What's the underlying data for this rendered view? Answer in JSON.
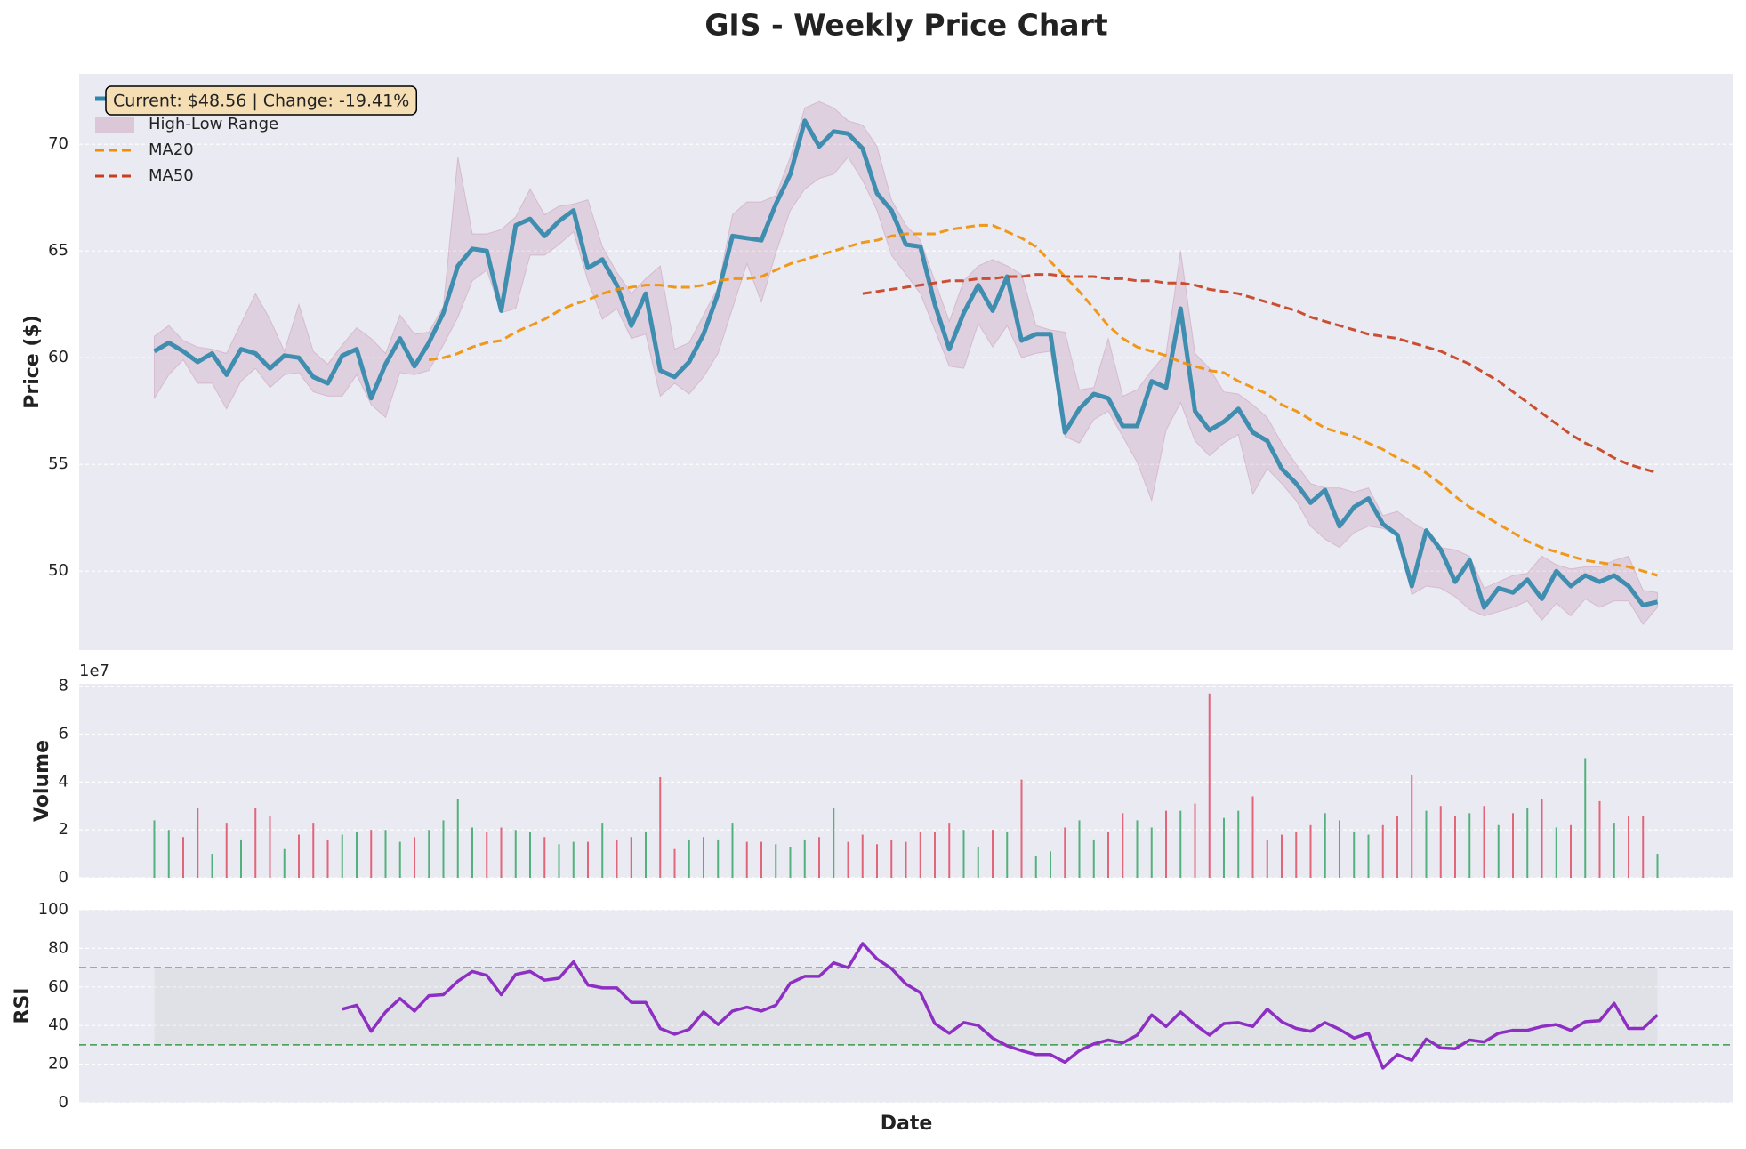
{
  "chart_data": [
    {
      "type": "line",
      "title": "GIS - Weekly Price Chart",
      "ylabel": "Price ($)",
      "annotation": "Current: $48.56 | Change: -19.41%",
      "legend": "upper left",
      "grid": true,
      "ylim": [
        46.3,
        73.3
      ],
      "yticks": [
        50,
        55,
        60,
        65,
        70
      ],
      "series": [
        {
          "name": "Close Price",
          "color": "#2e86ab",
          "values": [
            60.3,
            60.7,
            60.3,
            59.8,
            60.2,
            59.2,
            60.4,
            60.2,
            59.5,
            60.1,
            60.0,
            59.1,
            58.8,
            60.1,
            60.4,
            58.1,
            59.7,
            60.9,
            59.6,
            60.7,
            62.1,
            64.3,
            65.1,
            65.0,
            62.2,
            66.2,
            66.5,
            65.7,
            66.4,
            66.9,
            64.2,
            64.6,
            63.4,
            61.5,
            63.0,
            59.4,
            59.1,
            59.8,
            61.1,
            63.0,
            65.7,
            65.6,
            65.5,
            67.2,
            68.6,
            71.1,
            69.9,
            70.6,
            70.5,
            69.8,
            67.7,
            66.9,
            65.3,
            65.2,
            62.5,
            60.4,
            62.1,
            63.4,
            62.2,
            63.8,
            60.8,
            61.1,
            61.1,
            56.5,
            57.6,
            58.3,
            58.1,
            56.8,
            56.8,
            58.9,
            58.6,
            62.3,
            57.5,
            56.6,
            57.0,
            57.6,
            56.5,
            56.1,
            54.8,
            54.1,
            53.2,
            53.8,
            52.1,
            53.0,
            53.4,
            52.2,
            51.7,
            49.3,
            51.9,
            51.0,
            49.5,
            50.5,
            48.3,
            49.2,
            49.0,
            49.6,
            48.7,
            50.0,
            49.3,
            49.8,
            49.5,
            49.8,
            49.3,
            48.4,
            48.56
          ]
        },
        {
          "name": "High-Low Range",
          "color": "#a23b72",
          "style": "range",
          "high": [
            61.0,
            61.5,
            60.8,
            60.5,
            60.4,
            60.2,
            61.6,
            63.0,
            61.8,
            60.3,
            62.5,
            60.3,
            59.7,
            60.6,
            61.4,
            60.9,
            60.2,
            62.0,
            61.1,
            61.2,
            62.4,
            69.4,
            65.8,
            65.8,
            66.0,
            66.6,
            67.9,
            66.7,
            67.1,
            67.2,
            67.4,
            65.2,
            64.0,
            63.0,
            63.7,
            64.3,
            60.4,
            60.7,
            62.0,
            63.3,
            66.7,
            67.3,
            67.3,
            67.6,
            69.4,
            71.7,
            72.0,
            71.7,
            71.1,
            70.9,
            69.9,
            67.4,
            66.2,
            65.5,
            63.6,
            61.7,
            63.6,
            64.3,
            64.6,
            64.3,
            63.9,
            61.5,
            61.3,
            61.2,
            58.5,
            58.6,
            60.9,
            58.2,
            58.5,
            59.4,
            60.2,
            65.0,
            60.2,
            59.5,
            58.4,
            58.3,
            57.8,
            57.2,
            56.0,
            55.0,
            54.1,
            53.9,
            53.9,
            53.7,
            53.9,
            52.6,
            52.8,
            52.3,
            51.9,
            51.1,
            51.0,
            50.7,
            49.2,
            49.5,
            49.8,
            49.9,
            50.7,
            50.3,
            50.1,
            50.2,
            50.2,
            50.5,
            50.7,
            49.1,
            49.0
          ],
          "low": [
            58.1,
            59.2,
            59.9,
            58.8,
            58.8,
            57.6,
            58.9,
            59.5,
            58.6,
            59.2,
            59.3,
            58.4,
            58.2,
            58.2,
            59.2,
            57.8,
            57.2,
            59.3,
            59.2,
            59.4,
            60.6,
            61.9,
            63.6,
            64.1,
            62.1,
            62.3,
            64.8,
            64.8,
            65.3,
            65.9,
            63.6,
            61.8,
            62.3,
            60.9,
            61.1,
            58.2,
            58.8,
            58.3,
            59.1,
            60.2,
            62.3,
            64.4,
            62.6,
            64.9,
            66.9,
            67.9,
            68.4,
            68.6,
            69.4,
            68.3,
            66.9,
            64.8,
            63.9,
            63.0,
            61.3,
            59.6,
            59.5,
            61.6,
            60.5,
            61.5,
            60.0,
            60.2,
            60.3,
            56.3,
            56.0,
            57.1,
            57.5,
            56.3,
            55.1,
            53.3,
            56.6,
            57.9,
            56.1,
            55.4,
            56.0,
            56.4,
            53.6,
            54.8,
            54.1,
            53.3,
            52.1,
            51.5,
            51.1,
            51.8,
            52.1,
            52.0,
            51.7,
            48.9,
            49.3,
            49.2,
            48.8,
            48.2,
            47.9,
            48.1,
            48.3,
            48.6,
            47.7,
            48.5,
            47.9,
            48.7,
            48.3,
            48.6,
            48.6,
            47.5,
            48.3
          ]
        },
        {
          "name": "MA20",
          "color": "#f18f01",
          "style": "dashed",
          "values": [
            null,
            null,
            null,
            null,
            null,
            null,
            null,
            null,
            null,
            null,
            null,
            null,
            null,
            null,
            null,
            null,
            null,
            null,
            null,
            59.9,
            60.0,
            60.2,
            60.5,
            60.7,
            60.8,
            61.2,
            61.5,
            61.8,
            62.2,
            62.5,
            62.7,
            63.0,
            63.2,
            63.3,
            63.4,
            63.4,
            63.3,
            63.3,
            63.4,
            63.6,
            63.7,
            63.7,
            63.8,
            64.1,
            64.4,
            64.6,
            64.8,
            65.0,
            65.2,
            65.4,
            65.5,
            65.7,
            65.8,
            65.8,
            65.8,
            66.0,
            66.1,
            66.2,
            66.2,
            65.9,
            65.6,
            65.2,
            64.5,
            63.8,
            63.1,
            62.3,
            61.5,
            60.9,
            60.5,
            60.3,
            60.1,
            59.8,
            59.6,
            59.4,
            59.3,
            58.9,
            58.6,
            58.3,
            57.8,
            57.5,
            57.1,
            56.7,
            56.5,
            56.3,
            56.0,
            55.7,
            55.3,
            55.0,
            54.6,
            54.1,
            53.5,
            53.0,
            52.6,
            52.2,
            51.8,
            51.4,
            51.1,
            50.9,
            50.7,
            50.5,
            50.4,
            50.3,
            50.2,
            50.0,
            49.8
          ]
        },
        {
          "name": "MA50",
          "color": "#c73e1d",
          "style": "dashed",
          "values": [
            null,
            null,
            null,
            null,
            null,
            null,
            null,
            null,
            null,
            null,
            null,
            null,
            null,
            null,
            null,
            null,
            null,
            null,
            null,
            null,
            null,
            null,
            null,
            null,
            null,
            null,
            null,
            null,
            null,
            null,
            null,
            null,
            null,
            null,
            null,
            null,
            null,
            null,
            null,
            null,
            null,
            null,
            null,
            null,
            null,
            null,
            null,
            null,
            null,
            63.0,
            63.1,
            63.2,
            63.3,
            63.4,
            63.5,
            63.6,
            63.6,
            63.7,
            63.7,
            63.8,
            63.8,
            63.9,
            63.9,
            63.8,
            63.8,
            63.8,
            63.7,
            63.7,
            63.6,
            63.6,
            63.5,
            63.5,
            63.4,
            63.2,
            63.1,
            63.0,
            62.8,
            62.6,
            62.4,
            62.2,
            61.9,
            61.7,
            61.5,
            61.3,
            61.1,
            61.0,
            60.9,
            60.7,
            60.5,
            60.3,
            60.0,
            59.7,
            59.3,
            58.9,
            58.4,
            57.9,
            57.4,
            56.9,
            56.4,
            56.0,
            55.7,
            55.3,
            55.0,
            54.8,
            54.6
          ]
        }
      ]
    },
    {
      "type": "bar",
      "ylabel": "Volume",
      "offset_label": "1e7",
      "grid": true,
      "ylim": [
        0,
        8.1
      ],
      "yticks": [
        0,
        2,
        4,
        6,
        8
      ],
      "up_color": "#2ca25f",
      "down_color": "#e0455a",
      "values": [
        2.4,
        2.0,
        1.7,
        2.9,
        1.0,
        2.3,
        1.6,
        2.9,
        2.6,
        1.2,
        1.8,
        2.3,
        1.6,
        1.8,
        1.9,
        2.0,
        2.0,
        1.5,
        1.7,
        2.0,
        2.4,
        3.3,
        2.1,
        1.9,
        2.1,
        2.0,
        1.9,
        1.7,
        1.4,
        1.5,
        1.5,
        2.3,
        1.6,
        1.7,
        1.9,
        4.2,
        1.2,
        1.6,
        1.7,
        1.6,
        2.3,
        1.5,
        1.5,
        1.4,
        1.3,
        1.6,
        1.7,
        2.9,
        1.5,
        1.8,
        1.4,
        1.6,
        1.5,
        1.9,
        1.9,
        2.3,
        2.0,
        1.3,
        2.0,
        1.9,
        4.1,
        0.9,
        1.1,
        2.1,
        2.4,
        1.6,
        1.9,
        2.7,
        2.4,
        2.1,
        2.8,
        2.8,
        3.1,
        7.7,
        2.5,
        2.8,
        3.4,
        1.6,
        1.8,
        1.9,
        2.2,
        2.7,
        2.4,
        1.9,
        1.8,
        2.2,
        2.6,
        4.3,
        2.8,
        3.0,
        2.6,
        2.7,
        3.0,
        2.2,
        2.7,
        2.9,
        3.3,
        2.1,
        2.2,
        5.0,
        3.2,
        2.3,
        2.6,
        2.6,
        1.0
      ]
    },
    {
      "type": "line",
      "ylabel": "RSI",
      "xlabel": "Date",
      "grid": true,
      "ylim": [
        0,
        100
      ],
      "yticks": [
        0,
        20,
        40,
        60,
        80,
        100
      ],
      "color": "#8e2fc4",
      "overbought": 70,
      "oversold": 30,
      "overbought_color": "#e74c5c",
      "oversold_color": "#3a9a48",
      "values": [
        null,
        null,
        null,
        null,
        null,
        null,
        null,
        null,
        null,
        null,
        null,
        null,
        null,
        48.5,
        50.5,
        37,
        47,
        54,
        47.5,
        55.5,
        56,
        63,
        68,
        66,
        56,
        66.5,
        68,
        63.5,
        64.5,
        73,
        61,
        59.5,
        59.5,
        52,
        52,
        38.5,
        35.5,
        38,
        47,
        40.5,
        47.5,
        49.5,
        47.5,
        50.5,
        62,
        65.5,
        65.5,
        72.5,
        70,
        82.5,
        74.5,
        69.5,
        61.5,
        57,
        41,
        36,
        41.5,
        40,
        33.5,
        29.5,
        27,
        25,
        25,
        21,
        27,
        30.5,
        32.5,
        31,
        35,
        45.5,
        39.5,
        47,
        40.5,
        35,
        41,
        41.5,
        39.5,
        48.5,
        42,
        38.5,
        37,
        41.5,
        38,
        33.5,
        36,
        18,
        25,
        22,
        33,
        28.5,
        28,
        32.5,
        31.5,
        36,
        37.5,
        37.5,
        39.5,
        40.5,
        37.5,
        42,
        42.5,
        51.5,
        38.5,
        38.5,
        45.5
      ]
    }
  ]
}
